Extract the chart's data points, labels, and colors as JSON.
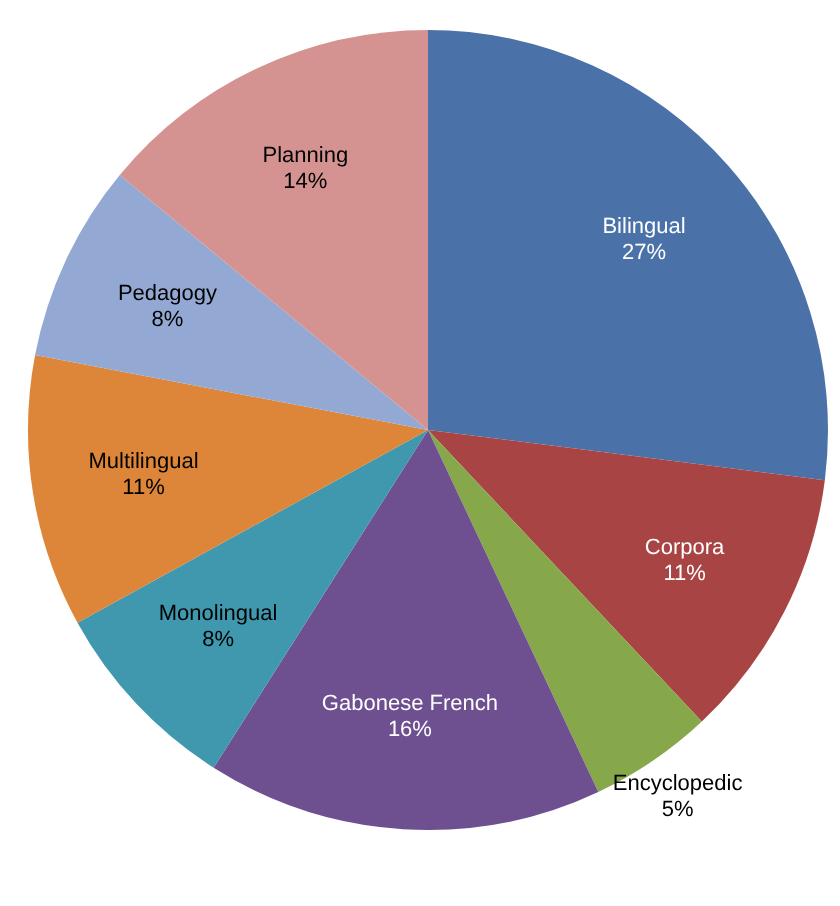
{
  "chart_data": {
    "type": "pie",
    "categories": [
      "Bilingual",
      "Corpora",
      "Encyclopedic",
      "Gabonese French",
      "Monolingual",
      "Multilingual",
      "Pedagogy",
      "Planning"
    ],
    "values": [
      27,
      11,
      5,
      16,
      8,
      11,
      8,
      14
    ],
    "value_labels": [
      "27%",
      "11%",
      "5%",
      "16%",
      "8%",
      "11%",
      "8%",
      "14%"
    ],
    "colors": [
      "#4a72a8",
      "#a84444",
      "#86a84a",
      "#6e5090",
      "#3f98ae",
      "#dd8539",
      "#93a9d3",
      "#d49391"
    ],
    "legend": false
  }
}
